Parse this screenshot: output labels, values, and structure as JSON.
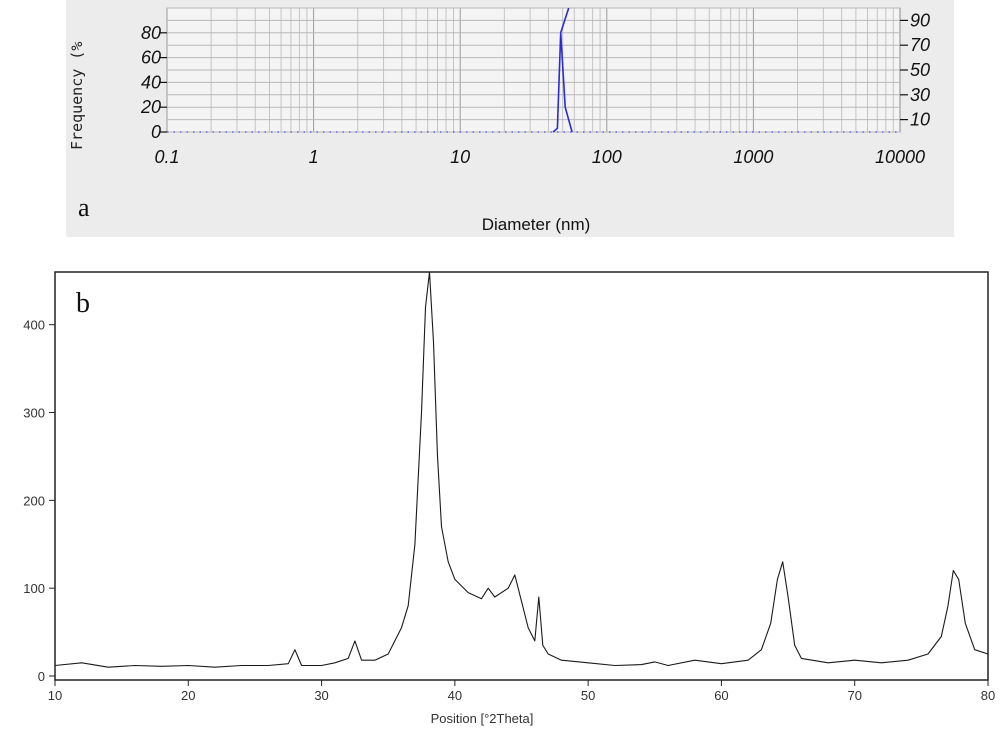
{
  "chart_data": [
    {
      "panel_label": "a",
      "type": "line",
      "ylabel": "Frequency (%",
      "xlabel": "Diameter (nm)",
      "x_scale": "log",
      "xlim": [
        0.1,
        10000
      ],
      "ylim": [
        0,
        100
      ],
      "x_ticks": [
        "0.1",
        "1",
        "10",
        "100",
        "1000",
        "10000"
      ],
      "y_ticks_left": [
        "0",
        "20",
        "40",
        "60",
        "80"
      ],
      "y_ticks_right": [
        "10",
        "30",
        "50",
        "70",
        "90"
      ],
      "grid": true,
      "series": [
        {
          "color": "#2a2ad8",
          "x": [
            43,
            46,
            48.5,
            52,
            58
          ],
          "y": [
            0,
            3,
            80,
            20,
            0
          ]
        },
        {
          "color": "#2a2ad8",
          "x": [
            48.5,
            55
          ],
          "y": [
            80,
            100
          ]
        }
      ]
    },
    {
      "panel_label": "b",
      "type": "line",
      "xlabel": "Position [°2Theta]",
      "xlim": [
        10,
        80
      ],
      "ylim": [
        0,
        460
      ],
      "x_ticks": [
        "10",
        "20",
        "30",
        "40",
        "50",
        "60",
        "70",
        "80"
      ],
      "y_ticks": [
        "0",
        "100",
        "200",
        "300",
        "400"
      ],
      "grid": false,
      "series": [
        {
          "color": "#1a1a1a",
          "x": [
            10,
            12,
            14,
            16,
            18,
            20,
            22,
            24,
            26,
            27.5,
            28,
            28.5,
            30,
            31,
            32,
            32.5,
            33,
            34,
            35,
            36,
            36.5,
            37,
            37.5,
            37.8,
            38.1,
            38.4,
            38.7,
            39,
            39.5,
            40,
            41,
            42,
            42.5,
            43,
            44,
            44.5,
            45,
            45.5,
            46,
            46.3,
            46.6,
            47,
            48,
            50,
            52,
            54,
            55,
            56,
            58,
            60,
            62,
            63,
            63.7,
            64.2,
            64.6,
            65,
            65.5,
            66,
            68,
            70,
            72,
            74,
            75.5,
            76.5,
            77,
            77.4,
            77.8,
            78.3,
            79,
            80
          ],
          "y": [
            12,
            15,
            10,
            12,
            11,
            12,
            10,
            12,
            12,
            14,
            30,
            12,
            12,
            15,
            20,
            40,
            18,
            18,
            25,
            55,
            80,
            150,
            300,
            420,
            460,
            380,
            250,
            170,
            130,
            110,
            95,
            88,
            100,
            90,
            100,
            115,
            85,
            55,
            40,
            90,
            35,
            25,
            18,
            15,
            12,
            13,
            16,
            12,
            18,
            14,
            18,
            30,
            60,
            110,
            130,
            90,
            35,
            20,
            15,
            18,
            15,
            18,
            25,
            45,
            80,
            120,
            110,
            60,
            30,
            25
          ]
        }
      ]
    }
  ]
}
